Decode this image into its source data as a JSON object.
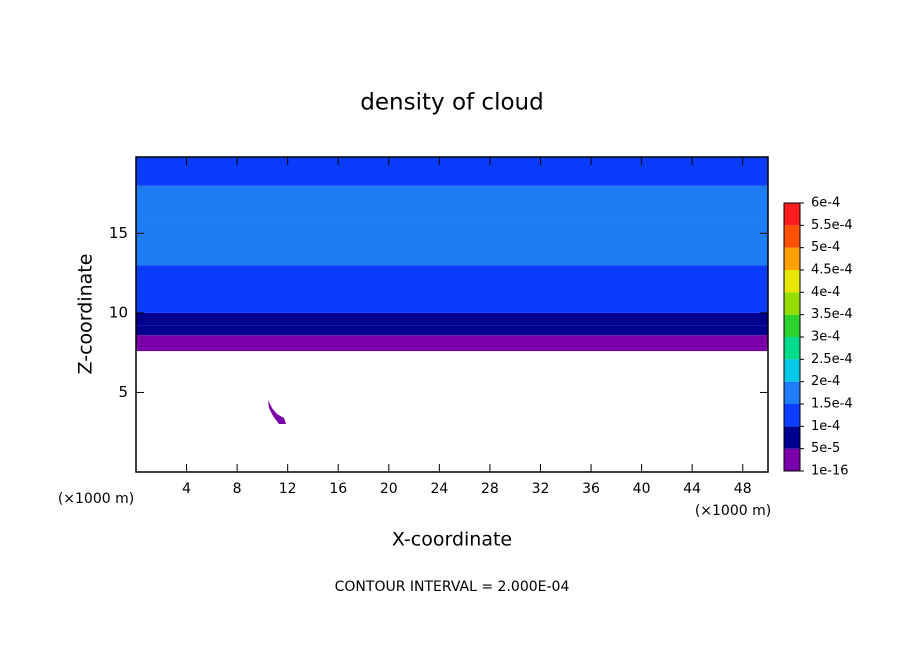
{
  "chart_data": {
    "type": "contour",
    "title": "density of cloud",
    "xlabel": "X-coordinate",
    "ylabel": "Z-coordinate",
    "x_unit": "(×1000 m)",
    "y_unit": "(×1000 m)",
    "note": "CONTOUR INTERVAL = 2.000E-04",
    "xlim": [
      0,
      50
    ],
    "ylim": [
      0,
      19.8
    ],
    "xticks": [
      4,
      8,
      12,
      16,
      20,
      24,
      28,
      32,
      36,
      40,
      44,
      48
    ],
    "yticks": [
      5,
      10,
      15
    ],
    "field": {
      "z": [
        7.6,
        8.6,
        9.2,
        10,
        11,
        13,
        16,
        18,
        19.8
      ],
      "values": [
        2e-05,
        6e-05,
        8e-05,
        0.00011,
        0.00013,
        0.00016,
        0.00017,
        0.00014
      ]
    },
    "colorbar": {
      "levels": [
        {
          "value": 1e-16,
          "label": "1e-16"
        },
        {
          "value": 5e-05,
          "label": "5e-5"
        },
        {
          "value": 0.0001,
          "label": "1e-4"
        },
        {
          "value": 0.00015,
          "label": "1.5e-4"
        },
        {
          "value": 0.0002,
          "label": "2e-4"
        },
        {
          "value": 0.00025,
          "label": "2.5e-4"
        },
        {
          "value": 0.0003,
          "label": "3e-4"
        },
        {
          "value": 0.00035,
          "label": "3.5e-4"
        },
        {
          "value": 0.0004,
          "label": "4e-4"
        },
        {
          "value": 0.00045,
          "label": "4.5e-4"
        },
        {
          "value": 0.0005,
          "label": "5e-4"
        },
        {
          "value": 0.00055,
          "label": "5.5e-4"
        },
        {
          "value": 0.0006,
          "label": "6e-4"
        }
      ],
      "colors": [
        "#7a00aa",
        "#000090",
        "#0a3cff",
        "#1e7cf5",
        "#00c8e6",
        "#00dc8c",
        "#2ed22e",
        "#96dc00",
        "#e6e600",
        "#ffa000",
        "#ff5000",
        "#ff1e1e"
      ]
    }
  }
}
